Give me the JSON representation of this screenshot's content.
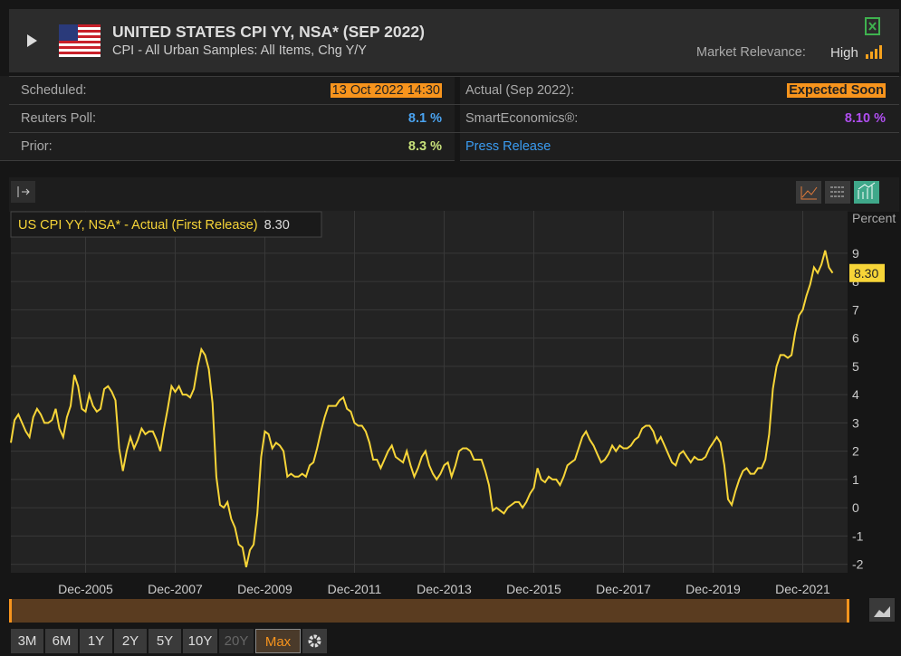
{
  "header": {
    "title": "UNITED STATES CPI YY, NSA* (SEP 2022)",
    "subtitle": "CPI - All Urban Samples: All Items, Chg Y/Y",
    "relevance_label": "Market Relevance:",
    "relevance": "High"
  },
  "table": {
    "rows": [
      [
        "Scheduled:",
        "13 Oct 2022 14:30",
        "Actual (Sep 2022):",
        "Expected Soon"
      ],
      [
        "Reuters Poll:",
        "8.1 %",
        "SmartEconomics®:",
        "8.10 %"
      ],
      [
        "Prior:",
        "8.3 %",
        "Press Release",
        ""
      ]
    ]
  },
  "ranges": {
    "buttons": [
      "3M",
      "6M",
      "1Y",
      "2Y",
      "5Y",
      "10Y",
      "20Y",
      "Max"
    ],
    "selected": "Max",
    "disabled": "20Y"
  },
  "chart_data": {
    "type": "line",
    "y_label": "Percent",
    "current": {
      "value": 8.3,
      "label": "8.30"
    },
    "xlim": [
      "2004-04",
      "2022-12"
    ],
    "xticks": [
      {
        "value": "2005-12",
        "label": "Dec-2005"
      },
      {
        "value": "2007-12",
        "label": "Dec-2007"
      },
      {
        "value": "2009-12",
        "label": "Dec-2009"
      },
      {
        "value": "2011-12",
        "label": "Dec-2011"
      },
      {
        "value": "2013-12",
        "label": "Dec-2013"
      },
      {
        "value": "2015-12",
        "label": "Dec-2015"
      },
      {
        "value": "2017-12",
        "label": "Dec-2017"
      },
      {
        "value": "2019-12",
        "label": "Dec-2019"
      },
      {
        "value": "2021-12",
        "label": "Dec-2021"
      }
    ],
    "ylim": [
      -2.3,
      10.5
    ],
    "yticks": [
      -2,
      -1,
      0,
      1,
      2,
      3,
      4,
      5,
      6,
      7,
      8,
      9
    ],
    "grid": true,
    "x": [
      "2004-04",
      "2004-05",
      "2004-06",
      "2004-07",
      "2004-08",
      "2004-09",
      "2004-10",
      "2004-11",
      "2004-12",
      "2005-01",
      "2005-02",
      "2005-03",
      "2005-04",
      "2005-05",
      "2005-06",
      "2005-07",
      "2005-08",
      "2005-09",
      "2005-10",
      "2005-11",
      "2005-12",
      "2006-01",
      "2006-02",
      "2006-03",
      "2006-04",
      "2006-05",
      "2006-06",
      "2006-07",
      "2006-08",
      "2006-09",
      "2006-10",
      "2006-11",
      "2006-12",
      "2007-01",
      "2007-02",
      "2007-03",
      "2007-04",
      "2007-05",
      "2007-06",
      "2007-07",
      "2007-08",
      "2007-09",
      "2007-10",
      "2007-11",
      "2007-12",
      "2008-01",
      "2008-02",
      "2008-03",
      "2008-04",
      "2008-05",
      "2008-06",
      "2008-07",
      "2008-08",
      "2008-09",
      "2008-10",
      "2008-11",
      "2008-12",
      "2009-01",
      "2009-02",
      "2009-03",
      "2009-04",
      "2009-05",
      "2009-06",
      "2009-07",
      "2009-08",
      "2009-09",
      "2009-10",
      "2009-11",
      "2009-12",
      "2010-01",
      "2010-02",
      "2010-03",
      "2010-04",
      "2010-05",
      "2010-06",
      "2010-07",
      "2010-08",
      "2010-09",
      "2010-10",
      "2010-11",
      "2010-12",
      "2011-01",
      "2011-02",
      "2011-03",
      "2011-04",
      "2011-05",
      "2011-06",
      "2011-07",
      "2011-08",
      "2011-09",
      "2011-10",
      "2011-11",
      "2011-12",
      "2012-01",
      "2012-02",
      "2012-03",
      "2012-04",
      "2012-05",
      "2012-06",
      "2012-07",
      "2012-08",
      "2012-09",
      "2012-10",
      "2012-11",
      "2012-12",
      "2013-01",
      "2013-02",
      "2013-03",
      "2013-04",
      "2013-05",
      "2013-06",
      "2013-07",
      "2013-08",
      "2013-09",
      "2013-10",
      "2013-11",
      "2013-12",
      "2014-01",
      "2014-02",
      "2014-03",
      "2014-04",
      "2014-05",
      "2014-06",
      "2014-07",
      "2014-08",
      "2014-09",
      "2014-10",
      "2014-11",
      "2014-12",
      "2015-01",
      "2015-02",
      "2015-03",
      "2015-04",
      "2015-05",
      "2015-06",
      "2015-07",
      "2015-08",
      "2015-09",
      "2015-10",
      "2015-11",
      "2015-12",
      "2016-01",
      "2016-02",
      "2016-03",
      "2016-04",
      "2016-05",
      "2016-06",
      "2016-07",
      "2016-08",
      "2016-09",
      "2016-10",
      "2016-11",
      "2016-12",
      "2017-01",
      "2017-02",
      "2017-03",
      "2017-04",
      "2017-05",
      "2017-06",
      "2017-07",
      "2017-08",
      "2017-09",
      "2017-10",
      "2017-11",
      "2017-12",
      "2018-01",
      "2018-02",
      "2018-03",
      "2018-04",
      "2018-05",
      "2018-06",
      "2018-07",
      "2018-08",
      "2018-09",
      "2018-10",
      "2018-11",
      "2018-12",
      "2019-01",
      "2019-02",
      "2019-03",
      "2019-04",
      "2019-05",
      "2019-06",
      "2019-07",
      "2019-08",
      "2019-09",
      "2019-10",
      "2019-11",
      "2019-12",
      "2020-01",
      "2020-02",
      "2020-03",
      "2020-04",
      "2020-05",
      "2020-06",
      "2020-07",
      "2020-08",
      "2020-09",
      "2020-10",
      "2020-11",
      "2020-12",
      "2021-01",
      "2021-02",
      "2021-03",
      "2021-04",
      "2021-05",
      "2021-06",
      "2021-07",
      "2021-08",
      "2021-09",
      "2021-10",
      "2021-11",
      "2021-12",
      "2022-01",
      "2022-02",
      "2022-03",
      "2022-04",
      "2022-05",
      "2022-06",
      "2022-07",
      "2022-08"
    ],
    "series": [
      {
        "name": "US CPI YY, NSA* - Actual (First Release)",
        "color": "#f7d538",
        "values": [
          2.3,
          3.1,
          3.3,
          3.0,
          2.7,
          2.5,
          3.2,
          3.5,
          3.3,
          3.0,
          3.0,
          3.1,
          3.5,
          2.8,
          2.5,
          3.2,
          3.6,
          4.7,
          4.3,
          3.5,
          3.4,
          4.0,
          3.6,
          3.4,
          3.5,
          4.2,
          4.3,
          4.1,
          3.8,
          2.1,
          1.3,
          2.0,
          2.5,
          2.1,
          2.4,
          2.8,
          2.6,
          2.7,
          2.7,
          2.4,
          2.0,
          2.8,
          3.5,
          4.3,
          4.1,
          4.3,
          4.0,
          4.0,
          3.9,
          4.2,
          5.0,
          5.6,
          5.4,
          4.9,
          3.7,
          1.1,
          0.1,
          0.0,
          0.2,
          -0.4,
          -0.7,
          -1.3,
          -1.4,
          -2.1,
          -1.5,
          -1.3,
          -0.2,
          1.8,
          2.7,
          2.6,
          2.1,
          2.3,
          2.2,
          2.0,
          1.1,
          1.2,
          1.1,
          1.1,
          1.2,
          1.1,
          1.5,
          1.6,
          2.1,
          2.7,
          3.2,
          3.6,
          3.6,
          3.6,
          3.8,
          3.9,
          3.5,
          3.4,
          3.0,
          2.9,
          2.9,
          2.7,
          2.3,
          1.7,
          1.7,
          1.4,
          1.7,
          2.0,
          2.2,
          1.8,
          1.7,
          1.6,
          2.0,
          1.5,
          1.1,
          1.4,
          1.8,
          2.0,
          1.5,
          1.2,
          1.0,
          1.2,
          1.5,
          1.6,
          1.1,
          1.5,
          2.0,
          2.1,
          2.1,
          2.0,
          1.7,
          1.7,
          1.7,
          1.3,
          0.8,
          -0.1,
          0.0,
          -0.1,
          -0.2,
          0.0,
          0.1,
          0.2,
          0.2,
          0.0,
          0.2,
          0.5,
          0.7,
          1.4,
          1.0,
          0.9,
          1.1,
          1.0,
          1.0,
          0.8,
          1.1,
          1.5,
          1.6,
          1.7,
          2.1,
          2.5,
          2.7,
          2.4,
          2.2,
          1.9,
          1.6,
          1.7,
          1.9,
          2.2,
          2.0,
          2.2,
          2.1,
          2.1,
          2.2,
          2.4,
          2.5,
          2.8,
          2.9,
          2.9,
          2.7,
          2.3,
          2.5,
          2.2,
          1.9,
          1.6,
          1.5,
          1.9,
          2.0,
          1.8,
          1.6,
          1.8,
          1.7,
          1.7,
          1.8,
          2.1,
          2.3,
          2.5,
          2.3,
          1.5,
          0.3,
          0.1,
          0.6,
          1.0,
          1.3,
          1.4,
          1.2,
          1.2,
          1.4,
          1.4,
          1.7,
          2.6,
          4.2,
          5.0,
          5.4,
          5.4,
          5.3,
          5.4,
          6.2,
          6.8,
          7.0,
          7.5,
          7.9,
          8.5,
          8.3,
          8.6,
          9.1,
          8.5,
          8.3
        ]
      }
    ]
  }
}
